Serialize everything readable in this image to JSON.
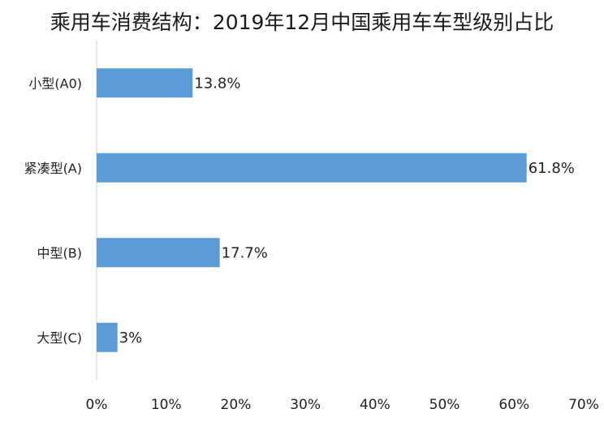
{
  "chart_data": {
    "type": "bar",
    "orientation": "horizontal",
    "title": "乘用车消费结构：2019年12月中国乘用车车型级别占比",
    "categories": [
      "小型(A0)",
      "紧凑型(A)",
      "中型(B)",
      "大型(C)"
    ],
    "values": [
      13.8,
      61.8,
      17.7,
      3
    ],
    "data_labels": [
      "13.8%",
      "61.8%",
      "17.7%",
      "3%"
    ],
    "x_ticks": [
      "0%",
      "10%",
      "20%",
      "30%",
      "40%",
      "50%",
      "60%",
      "70%"
    ],
    "xlim": [
      0,
      70
    ],
    "xlabel": "",
    "ylabel": "",
    "grid": false,
    "legend": "none",
    "bar_color": "#5B9BD5"
  }
}
